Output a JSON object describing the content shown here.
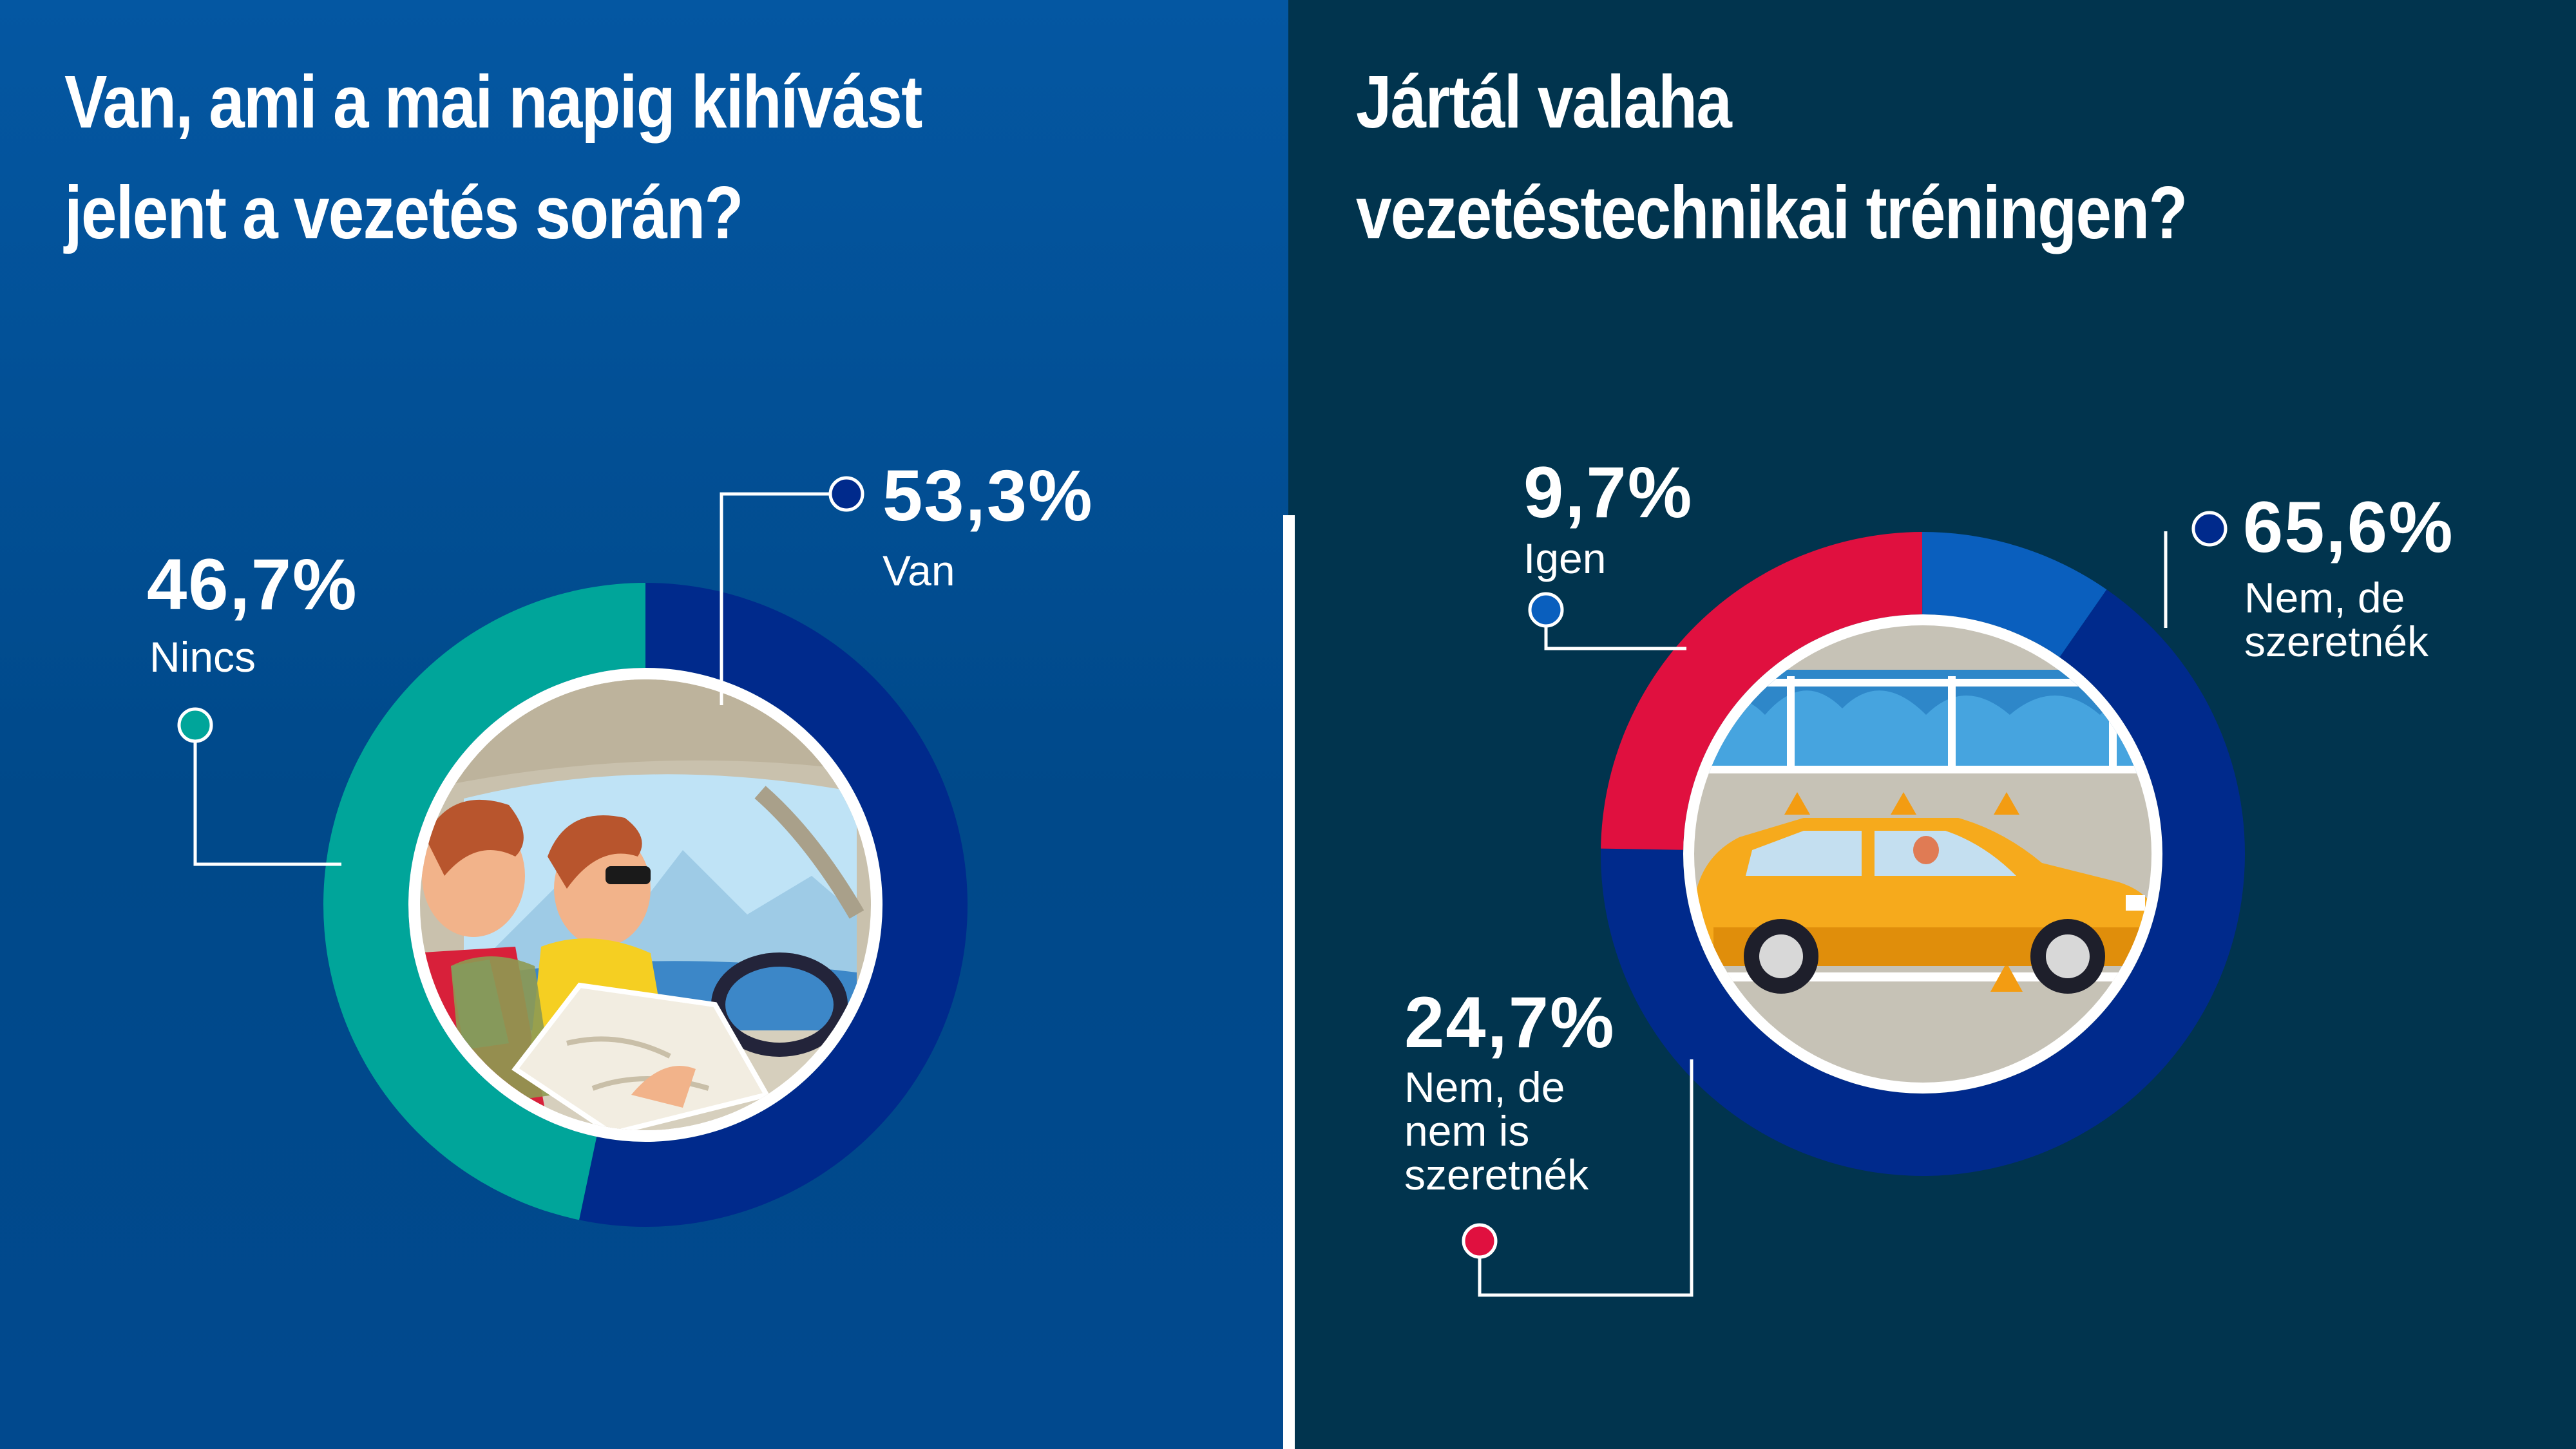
{
  "colors": {
    "left_bg": "#0457a2",
    "right_bg": "#01344e",
    "navy": "#002a8c",
    "teal": "#00a59a",
    "blue": "#0a5fbe",
    "red": "#e0103f",
    "white": "#ffffff"
  },
  "left": {
    "title_lines": [
      "Van, ami a mai napig kihívást",
      "jelent a vezetés során?"
    ]
  },
  "right": {
    "title_lines": [
      "Jártál valaha",
      "vezetéstechnikai tréningen?"
    ]
  },
  "icons": {
    "left_illustration": "driver-and-passenger-with-map-illustration",
    "right_illustration": "yellow-car-driving-training-course-illustration"
  },
  "chart_data": [
    {
      "type": "pie",
      "variant": "donut",
      "title": "Van, ami a mai napig kihívást jelent a vezetés során?",
      "slices": [
        {
          "label": "Van",
          "value": 53.3,
          "display": "53,3%",
          "color": "#002a8c"
        },
        {
          "label": "Nincs",
          "value": 46.7,
          "display": "46,7%",
          "color": "#00a59a"
        }
      ]
    },
    {
      "type": "pie",
      "variant": "donut",
      "title": "Jártál valaha vezetéstechnikai tréningen?",
      "slices": [
        {
          "label": "Nem, de szeretnék",
          "label_lines": [
            "Nem, de",
            "szeretnék"
          ],
          "value": 65.6,
          "display": "65,6%",
          "color": "#002a8c"
        },
        {
          "label": "Nem, de nem is szeretnék",
          "label_lines": [
            "Nem, de",
            "nem is",
            "szeretnék"
          ],
          "value": 24.7,
          "display": "24,7%",
          "color": "#e0103f"
        },
        {
          "label": "Igen",
          "value": 9.7,
          "display": "9,7%",
          "color": "#0a5fbe"
        }
      ]
    }
  ]
}
